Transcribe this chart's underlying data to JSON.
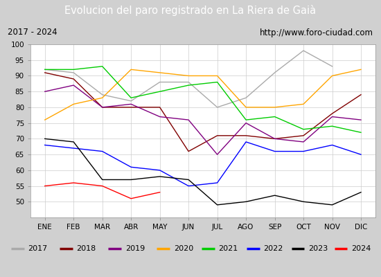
{
  "title": "Evolucion del paro registrado en La Riera de Gaià",
  "subtitle_left": "2017 - 2024",
  "subtitle_right": "http://www.foro-ciudad.com",
  "months": [
    "ENE",
    "FEB",
    "MAR",
    "ABR",
    "MAY",
    "JUN",
    "JUL",
    "AGO",
    "SEP",
    "OCT",
    "NOV",
    "DIC"
  ],
  "ylim": [
    45,
    100
  ],
  "series": {
    "2017": {
      "color": "#aaaaaa",
      "values": [
        92,
        91,
        84,
        82,
        88,
        88,
        80,
        83,
        91,
        98,
        93,
        null
      ]
    },
    "2018": {
      "color": "#800000",
      "values": [
        91,
        89,
        80,
        80,
        80,
        66,
        71,
        71,
        70,
        71,
        78,
        84
      ]
    },
    "2019": {
      "color": "#800080",
      "values": [
        85,
        87,
        80,
        81,
        77,
        76,
        65,
        75,
        70,
        69,
        77,
        76
      ]
    },
    "2020": {
      "color": "#ffa500",
      "values": [
        76,
        81,
        83,
        92,
        91,
        90,
        90,
        80,
        80,
        81,
        90,
        92
      ]
    },
    "2021": {
      "color": "#00cc00",
      "values": [
        92,
        92,
        93,
        83,
        85,
        87,
        88,
        76,
        77,
        73,
        74,
        72
      ]
    },
    "2022": {
      "color": "#0000ff",
      "values": [
        68,
        67,
        66,
        61,
        60,
        55,
        56,
        69,
        66,
        66,
        68,
        65
      ]
    },
    "2023": {
      "color": "#000000",
      "values": [
        70,
        69,
        57,
        57,
        58,
        57,
        49,
        50,
        52,
        50,
        49,
        53
      ]
    },
    "2024": {
      "color": "#ff0000",
      "values": [
        55,
        56,
        55,
        51,
        53,
        null,
        null,
        null,
        null,
        null,
        null,
        null
      ]
    }
  },
  "title_bg": "#4e7dbf",
  "title_color": "white",
  "subtitle_bg": "#e8e8e8",
  "grid_color": "#cccccc",
  "fig_bg": "#d0d0d0"
}
